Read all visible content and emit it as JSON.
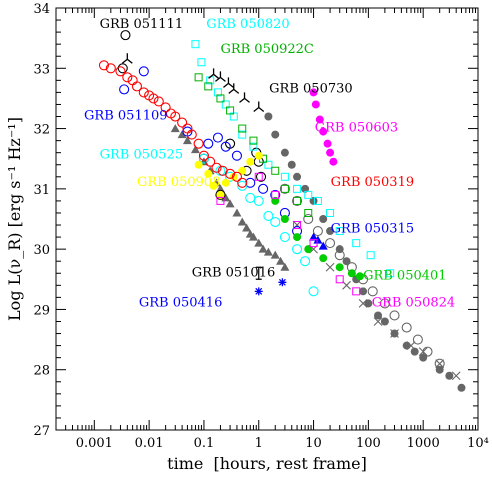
{
  "chart_data": {
    "type": "scatter",
    "xlabel": "time  [hours, rest frame]",
    "ylabel": "Log L(ν_R) [erg s⁻¹ Hz⁻¹]",
    "xscale": "log",
    "xlim": [
      0.0002,
      10000
    ],
    "ylim": [
      27,
      34
    ],
    "grid": false,
    "x_tick_labels": [
      {
        "value": 0.001,
        "label": "0.001"
      },
      {
        "value": 0.01,
        "label": "0.01"
      },
      {
        "value": 0.1,
        "label": "0.1"
      },
      {
        "value": 1,
        "label": "1"
      },
      {
        "value": 10,
        "label": "10"
      },
      {
        "value": 100,
        "label": "100"
      },
      {
        "value": 1000,
        "label": "1000"
      },
      {
        "value": 10000,
        "label": "10⁴"
      }
    ],
    "y_ticks": [
      27,
      28,
      29,
      30,
      31,
      32,
      33,
      34
    ],
    "series": [
      {
        "name": "GRB 051111",
        "color": "#000000",
        "marker": "open-circle",
        "label_pos": {
          "x": 0.00125,
          "y": 33.67
        },
        "x": [
          0.0033,
          0.0037,
          0.3,
          0.6,
          0.9,
          1.0,
          1.1,
          0.2,
          0.1
        ],
        "y": [
          33.0,
          33.55,
          31.75,
          31.3,
          31.6,
          31.45,
          31.2,
          30.9,
          31.5
        ]
      },
      {
        "name": "GRB 051109",
        "color": "#0000ff",
        "marker": "open-circle",
        "label_pos": {
          "x": 0.00065,
          "y": 32.15
        },
        "x": [
          0.0035,
          0.008,
          0.05,
          0.12,
          0.18,
          0.25,
          0.4,
          0.7,
          1.2,
          2.0,
          3.0,
          5.0
        ],
        "y": [
          32.65,
          32.95,
          31.95,
          31.75,
          31.85,
          31.7,
          31.55,
          31.1,
          31.0,
          30.9,
          30.6,
          30.3
        ]
      },
      {
        "name": "GRB 050820",
        "color": "#00ffff",
        "marker": "open-square",
        "label_pos": {
          "x": 0.11,
          "y": 33.67
        },
        "x": [
          0.07,
          0.09,
          0.13,
          0.18,
          0.25,
          0.35,
          0.5,
          0.8,
          1.5,
          3.0,
          5.0,
          8.0,
          12.0,
          20.0,
          30.0,
          60.0,
          110.0,
          250.0
        ],
        "y": [
          33.4,
          33.1,
          32.8,
          32.6,
          32.4,
          32.2,
          31.9,
          31.7,
          31.4,
          31.2,
          31.0,
          30.9,
          30.8,
          30.6,
          30.3,
          30.1,
          29.9,
          29.6
        ]
      },
      {
        "name": "GRB 050922C",
        "color": "#00b000",
        "marker": "open-square",
        "label_pos": {
          "x": 0.2,
          "y": 33.25
        },
        "x": [
          0.08,
          0.12,
          0.2,
          0.3,
          0.5,
          0.8,
          1.2,
          2.0,
          3.0,
          5.0,
          8.0
        ],
        "y": [
          32.85,
          32.7,
          32.5,
          32.3,
          32.0,
          31.8,
          31.5,
          31.3,
          31.0,
          30.8,
          30.6
        ]
      },
      {
        "name": "GRB 050730",
        "color": "#000000",
        "marker": "tri",
        "label_pos": {
          "x": 1.55,
          "y": 32.6
        },
        "x": [
          0.004,
          0.15,
          0.2,
          0.28,
          0.35,
          0.55,
          1.0
        ],
        "y": [
          33.15,
          32.9,
          32.85,
          32.75,
          32.65,
          32.5,
          32.35
        ]
      },
      {
        "name": "GRB 050603",
        "color": "#ff00ff",
        "marker": "filled-circle",
        "label_pos": {
          "x": 10.5,
          "y": 31.95
        },
        "x": [
          10.0,
          11.0,
          13.0,
          15.0,
          18.0,
          20.0,
          23.0
        ],
        "y": [
          32.6,
          32.4,
          32.15,
          31.95,
          31.75,
          31.6,
          31.45
        ]
      },
      {
        "name": "GRB 050525",
        "color": "#00ffff",
        "marker": "open-circle",
        "label_pos": {
          "x": 0.00125,
          "y": 31.5
        },
        "x": [
          0.1,
          0.2,
          0.3,
          0.5,
          0.7,
          1.0,
          1.5,
          2.0,
          3.0,
          5.0,
          7.0,
          10.0
        ],
        "y": [
          31.5,
          31.3,
          31.2,
          31.05,
          30.85,
          30.8,
          30.55,
          30.45,
          30.2,
          30.0,
          29.8,
          29.3
        ]
      },
      {
        "name": "GRB 050908",
        "color": "#ffff00",
        "marker": "filled-circle",
        "label_pos": {
          "x": 0.006,
          "y": 31.05
        },
        "x": [
          0.08,
          0.12,
          0.15,
          0.2,
          0.25,
          0.35,
          0.5,
          0.7,
          1.0
        ],
        "y": [
          31.4,
          31.25,
          31.05,
          30.9,
          31.1,
          31.2,
          31.3,
          31.45,
          31.55
        ]
      },
      {
        "name": "GRB 050319",
        "color": "#ff0000",
        "marker": "open-circle",
        "label_pos": {
          "x": 20.5,
          "y": 31.05
        },
        "x": [
          0.0015,
          0.002,
          0.003,
          0.004,
          0.005,
          0.006,
          0.008,
          0.01,
          0.012,
          0.015,
          0.02,
          0.025,
          0.03,
          0.04,
          0.05,
          0.06,
          0.08,
          0.1,
          0.13,
          0.17,
          0.22,
          0.3,
          0.4,
          0.5
        ],
        "y": [
          33.05,
          33.0,
          32.95,
          32.85,
          32.8,
          32.7,
          32.6,
          32.55,
          32.5,
          32.45,
          32.35,
          32.25,
          32.2,
          32.1,
          32.0,
          31.9,
          31.75,
          31.55,
          31.45,
          31.35,
          31.3,
          31.25,
          31.2,
          31.1
        ]
      },
      {
        "name": "GRB 050315",
        "color": "#0000ff",
        "marker": "filled-triangle",
        "label_pos": {
          "x": 20.5,
          "y": 30.28
        },
        "x": [
          10.0,
          12.0,
          15.0
        ],
        "y": [
          30.2,
          30.15,
          30.05
        ]
      },
      {
        "name": "GRB 050401",
        "color": "#00cc00",
        "marker": "filled-circle",
        "label_pos": {
          "x": 80.0,
          "y": 29.5
        },
        "x": [
          2.0,
          3.0,
          5.0,
          8.0,
          15.0,
          30.0,
          50.0,
          70.0
        ],
        "y": [
          30.8,
          30.5,
          30.2,
          30.0,
          29.85,
          29.7,
          29.6,
          29.55
        ]
      },
      {
        "name": "GRB 051016",
        "color": "#000000",
        "marker": "errorbar",
        "label_pos": {
          "x": 0.06,
          "y": 29.55
        },
        "x": [
          1.0
        ],
        "y": [
          29.6
        ]
      },
      {
        "name": "GRB 050416",
        "color": "#0000ff",
        "marker": "asterisk",
        "label_pos": {
          "x": 0.0065,
          "y": 29.05
        },
        "x": [
          1.0,
          2.7
        ],
        "y": [
          29.3,
          29.45
        ]
      },
      {
        "name": "GRB 050824",
        "color": "#ff00ff",
        "marker": "open-square",
        "label_pos": {
          "x": 115.0,
          "y": 29.05
        },
        "x": [
          0.2,
          1.0,
          2.0,
          5.0,
          10.0,
          30.0,
          60.0
        ],
        "y": [
          30.8,
          31.2,
          30.9,
          30.4,
          30.1,
          29.5,
          29.3
        ]
      },
      {
        "name": "",
        "color": "#666666",
        "marker": "filled-triangle",
        "x": [
          0.03,
          0.04,
          0.05,
          0.07,
          0.1,
          0.13,
          0.17,
          0.2,
          0.25,
          0.3,
          0.4,
          0.5,
          0.6,
          0.7,
          0.8,
          1.0,
          1.2,
          1.5,
          2.0,
          2.5,
          3.0
        ],
        "y": [
          32.0,
          31.9,
          31.8,
          31.65,
          31.45,
          31.3,
          31.1,
          31.0,
          30.85,
          30.75,
          30.6,
          30.45,
          30.35,
          30.25,
          30.2,
          30.1,
          30.0,
          29.95,
          29.9,
          29.8,
          29.7
        ]
      },
      {
        "name": "",
        "color": "#666666",
        "marker": "filled-circle",
        "x": [
          1.5,
          2.0,
          3.0,
          4.0,
          5.0,
          7.0,
          10.0,
          15.0,
          20.0,
          30.0,
          40.0,
          60.0,
          80.0,
          100.0,
          150.0,
          200.0,
          300.0,
          500.0,
          700.0,
          1000.0,
          2000.0,
          3000.0,
          5000.0
        ],
        "y": [
          32.2,
          31.9,
          31.6,
          31.4,
          31.2,
          31.0,
          30.8,
          30.5,
          30.3,
          30.0,
          29.8,
          29.5,
          29.3,
          29.1,
          28.9,
          28.8,
          28.6,
          28.4,
          28.3,
          28.2,
          28.0,
          27.9,
          27.7
        ]
      },
      {
        "name": "",
        "color": "#666666",
        "marker": "open-circle",
        "x": [
          3.0,
          5.0,
          8.0,
          12.0,
          20.0,
          30.0,
          50.0,
          80.0,
          120.0,
          200.0,
          300.0,
          500.0,
          800.0,
          1200.0,
          2000.0
        ],
        "y": [
          31.0,
          30.8,
          30.5,
          30.3,
          30.1,
          29.9,
          29.7,
          29.5,
          29.3,
          29.1,
          28.9,
          28.7,
          28.5,
          28.3,
          28.1
        ]
      },
      {
        "name": "",
        "color": "#666666",
        "marker": "cross",
        "x": [
          5.0,
          10.0,
          20.0,
          40.0,
          80.0,
          150.0,
          300.0,
          600.0,
          1000.0,
          2000.0,
          4000.0
        ],
        "y": [
          30.4,
          30.0,
          29.7,
          29.4,
          29.1,
          28.8,
          28.6,
          28.4,
          28.3,
          28.1,
          27.9
        ]
      }
    ]
  }
}
